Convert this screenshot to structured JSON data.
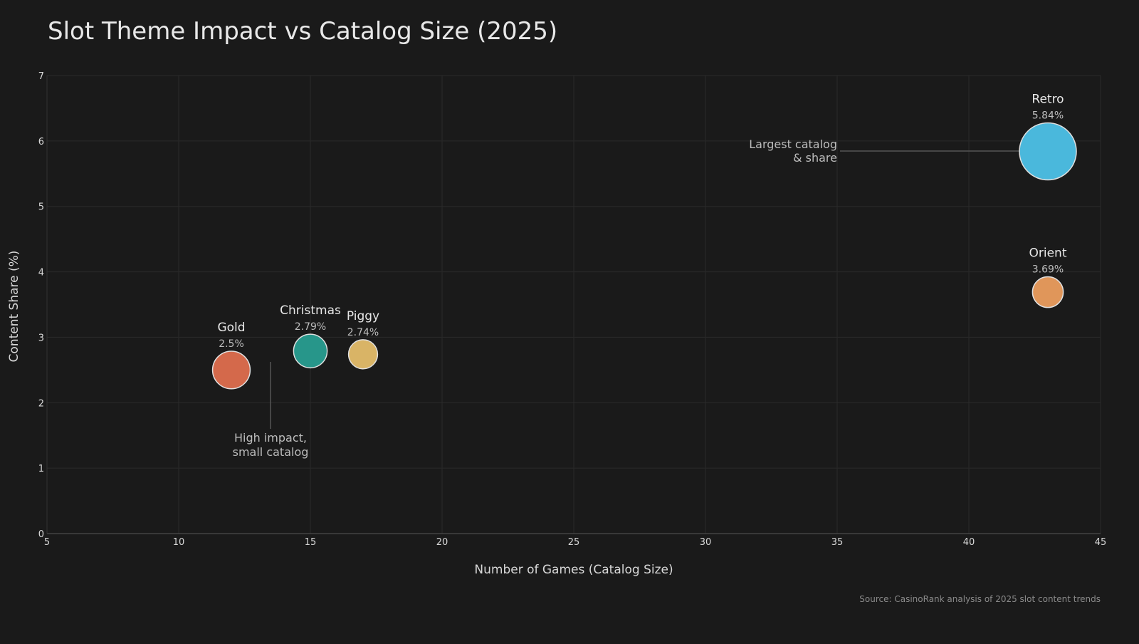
{
  "chart_data": {
    "type": "scatter",
    "title": "Slot Theme Impact vs Catalog Size (2025)",
    "xlabel": "Number of Games (Catalog Size)",
    "ylabel": "Content Share (%)",
    "xlim": [
      5,
      45
    ],
    "ylim": [
      0,
      7
    ],
    "xticks": [
      "5",
      "10",
      "15",
      "20",
      "25",
      "30",
      "35",
      "40",
      "45"
    ],
    "yticks": [
      "0",
      "1",
      "2",
      "3",
      "4",
      "5",
      "6",
      "7"
    ],
    "grid": true,
    "points": [
      {
        "name": "Gold",
        "x": 12,
        "y": 2.5,
        "label": "2.5%",
        "color": "#d4694b",
        "relative_size": 0.66
      },
      {
        "name": "Christmas",
        "x": 15,
        "y": 2.79,
        "label": "2.79%",
        "color": "#27968a",
        "relative_size": 0.59
      },
      {
        "name": "Piggy",
        "x": 17,
        "y": 2.74,
        "label": "2.74%",
        "color": "#d9b466",
        "relative_size": 0.51
      },
      {
        "name": "Orient",
        "x": 43,
        "y": 3.69,
        "label": "3.69%",
        "color": "#e0965a",
        "relative_size": 0.54
      },
      {
        "name": "Retro",
        "x": 43,
        "y": 5.84,
        "label": "5.84%",
        "color": "#4ab8dc",
        "relative_size": 1.0
      }
    ],
    "annotations": [
      {
        "lines": [
          "Largest catalog",
          "& share"
        ]
      },
      {
        "lines": [
          "High impact,",
          "small catalog"
        ]
      }
    ],
    "source": "Source: CasinoRank analysis of 2025 slot content trends"
  }
}
